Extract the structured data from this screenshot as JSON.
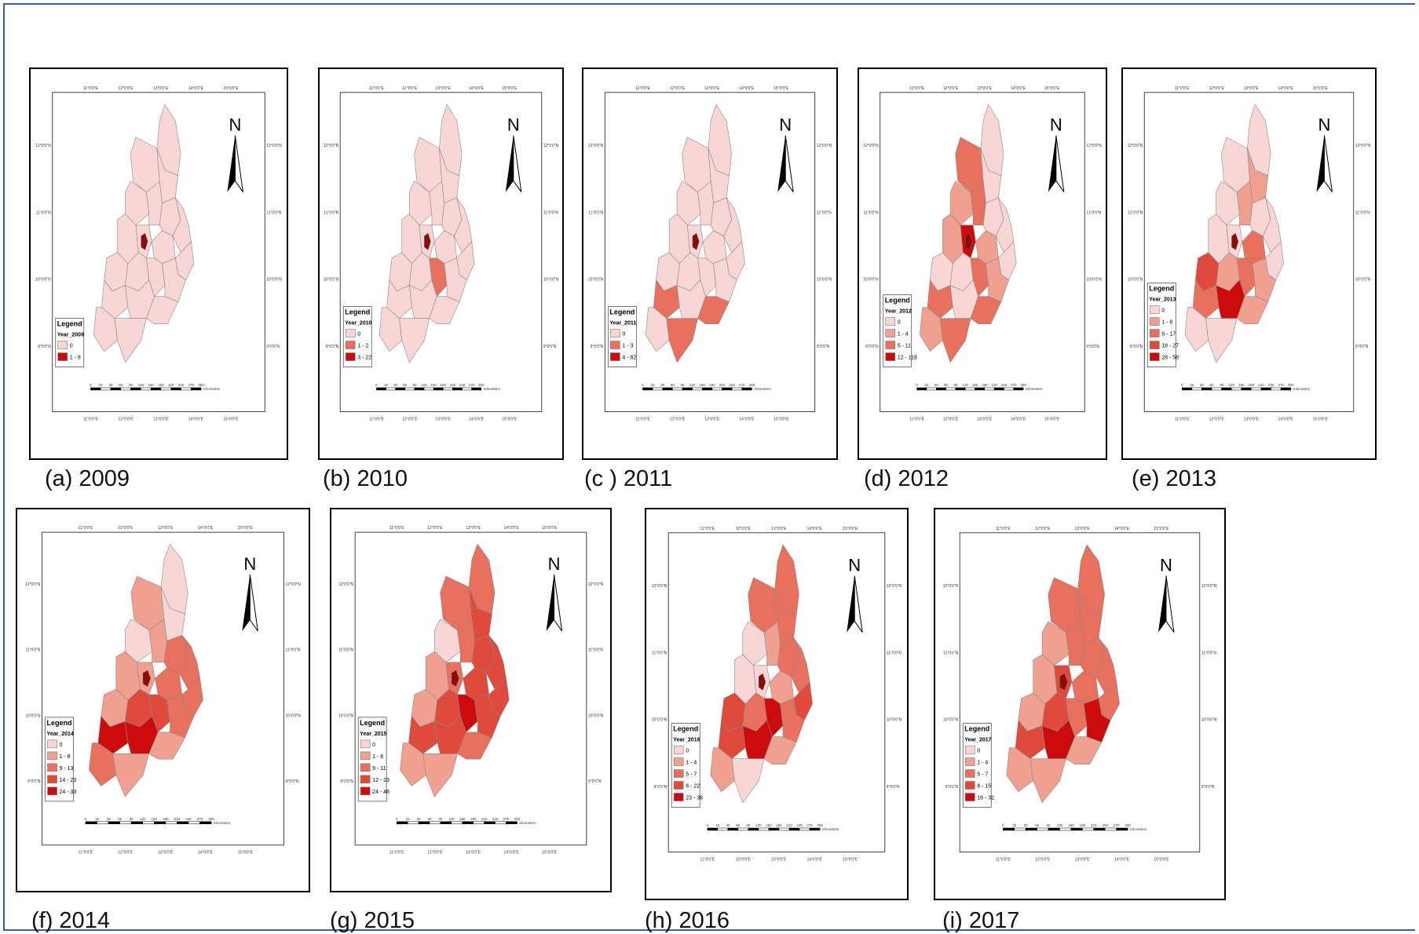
{
  "colors": {
    "frame": "#3b5fa0",
    "class_1": "#f8d6d6",
    "class_2": "#f0a090",
    "class_3": "#e8705f",
    "class_4": "#e04a3c",
    "class_5": "#cc0c0c",
    "capital": "#8b0a0a"
  },
  "axis_labels": {
    "top": [
      "11°0'0\"E",
      "12°0'0\"E",
      "13°0'0\"E",
      "14°0'0\"E",
      "15°0'0\"E"
    ],
    "side": [
      "12°0'0\"N",
      "11°0'0\"N",
      "10°0'0\"N",
      "9°0'0\"N"
    ]
  },
  "north_label": "N",
  "scale_bar": {
    "ticks": [
      "0",
      "15",
      "30",
      "60",
      "90",
      "120",
      "150",
      "180",
      "210",
      "240",
      "270",
      "300"
    ],
    "unit": "Kilometers"
  },
  "maps": [
    {
      "caption": "(a) 2009",
      "legend_title": "Legend",
      "legend_field": "Year_2009",
      "classes": [
        {
          "label": "0",
          "color": "#f8d6d6"
        },
        {
          "label": "1 - 8",
          "color": "#cc0c0c"
        }
      ],
      "region_classes": [
        0,
        0,
        0,
        0,
        0,
        0,
        0,
        0,
        0,
        0,
        0,
        0,
        0,
        0,
        0,
        0,
        0,
        0,
        0,
        0
      ]
    },
    {
      "caption": "(b) 2010",
      "legend_title": "Legend",
      "legend_field": "Year_2010",
      "classes": [
        {
          "label": "0",
          "color": "#f8d6d6"
        },
        {
          "label": "1 - 2",
          "color": "#e8705f"
        },
        {
          "label": "3 - 22",
          "color": "#cc0c0c"
        }
      ],
      "region_classes": [
        0,
        0,
        0,
        0,
        0,
        0,
        0,
        0,
        0,
        0,
        0,
        0,
        0,
        1,
        0,
        0,
        0,
        0,
        0,
        0
      ]
    },
    {
      "caption": "(c ) 2011",
      "legend_title": "Legend",
      "legend_field": "Year_2011",
      "classes": [
        {
          "label": "0",
          "color": "#f8d6d6"
        },
        {
          "label": "1 - 3",
          "color": "#e8705f"
        },
        {
          "label": "4 - 82",
          "color": "#cc0c0c"
        }
      ],
      "region_classes": [
        0,
        0,
        0,
        0,
        0,
        0,
        0,
        0,
        0,
        0,
        0,
        0,
        0,
        0,
        0,
        1,
        0,
        1,
        0,
        1
      ]
    },
    {
      "caption": "(d) 2012",
      "legend_title": "Legend",
      "legend_field": "Year_2012",
      "classes": [
        {
          "label": "0",
          "color": "#f8d6d6"
        },
        {
          "label": "1 - 4",
          "color": "#f0a090"
        },
        {
          "label": "5 - 11",
          "color": "#e8705f"
        },
        {
          "label": "12 - 118",
          "color": "#cc0c0c"
        }
      ],
      "region_classes": [
        0,
        2,
        0,
        1,
        2,
        0,
        0,
        1,
        3,
        1,
        0,
        0,
        0,
        2,
        1,
        2,
        0,
        2,
        1,
        2
      ]
    },
    {
      "caption": "(e) 2013",
      "legend_title": "Legend",
      "legend_field": "Year_2013",
      "classes": [
        {
          "label": "0",
          "color": "#f8d6d6"
        },
        {
          "label": "1 - 8",
          "color": "#f0a090"
        },
        {
          "label": "9 - 17",
          "color": "#e8705f"
        },
        {
          "label": "18 - 27",
          "color": "#e04a3c"
        },
        {
          "label": "28 - 58",
          "color": "#cc0c0c"
        }
      ],
      "region_classes": [
        0,
        0,
        1,
        0,
        1,
        0,
        0,
        0,
        0,
        2,
        0,
        3,
        1,
        2,
        1,
        2,
        4,
        1,
        0,
        0
      ]
    },
    {
      "caption": "(f) 2014",
      "legend_title": "Legend",
      "legend_field": "Year_2014",
      "classes": [
        {
          "label": "0",
          "color": "#f8d6d6"
        },
        {
          "label": "1 - 8",
          "color": "#f0a090"
        },
        {
          "label": "9 - 13",
          "color": "#e8705f"
        },
        {
          "label": "14 - 23",
          "color": "#e04a3c"
        },
        {
          "label": "24 - 33",
          "color": "#cc0c0c"
        }
      ],
      "region_classes": [
        0,
        1,
        0,
        0,
        1,
        2,
        2,
        1,
        1,
        2,
        2,
        1,
        3,
        3,
        2,
        4,
        4,
        1,
        2,
        1
      ]
    },
    {
      "caption": "(g) 2015",
      "legend_title": "Legend",
      "legend_field": "Year_2015",
      "classes": [
        {
          "label": "0",
          "color": "#f8d6d6"
        },
        {
          "label": "1 - 8",
          "color": "#f0a090"
        },
        {
          "label": "9 - 11",
          "color": "#e8705f"
        },
        {
          "label": "12 - 23",
          "color": "#e04a3c"
        },
        {
          "label": "24 - 46",
          "color": "#cc0c0c"
        }
      ],
      "region_classes": [
        2,
        2,
        3,
        0,
        2,
        3,
        3,
        1,
        2,
        3,
        3,
        1,
        3,
        4,
        3,
        3,
        3,
        2,
        1,
        1
      ]
    },
    {
      "caption": "(h) 2016",
      "legend_title": "Legend",
      "legend_field": "Year_2016",
      "classes": [
        {
          "label": "0",
          "color": "#f8d6d6"
        },
        {
          "label": "1 - 4",
          "color": "#f0a090"
        },
        {
          "label": "5 - 7",
          "color": "#e8705f"
        },
        {
          "label": "8 - 22",
          "color": "#e04a3c"
        },
        {
          "label": "23 - 38",
          "color": "#cc0c0c"
        }
      ],
      "region_classes": [
        2,
        2,
        2,
        0,
        1,
        2,
        2,
        0,
        0,
        1,
        3,
        3,
        2,
        4,
        2,
        3,
        4,
        1,
        1,
        0
      ]
    },
    {
      "caption": "(i) 2017",
      "legend_title": "Legend",
      "legend_field": "Year_2017",
      "classes": [
        {
          "label": "0",
          "color": "#f8d6d6"
        },
        {
          "label": "1 - 4",
          "color": "#f0a090"
        },
        {
          "label": "5 - 7",
          "color": "#e8705f"
        },
        {
          "label": "8 - 15",
          "color": "#e04a3c"
        },
        {
          "label": "16 - 32",
          "color": "#cc0c0c"
        }
      ],
      "region_classes": [
        2,
        2,
        2,
        1,
        2,
        2,
        2,
        1,
        3,
        2,
        2,
        1,
        3,
        2,
        4,
        3,
        4,
        1,
        1,
        1
      ]
    }
  ]
}
